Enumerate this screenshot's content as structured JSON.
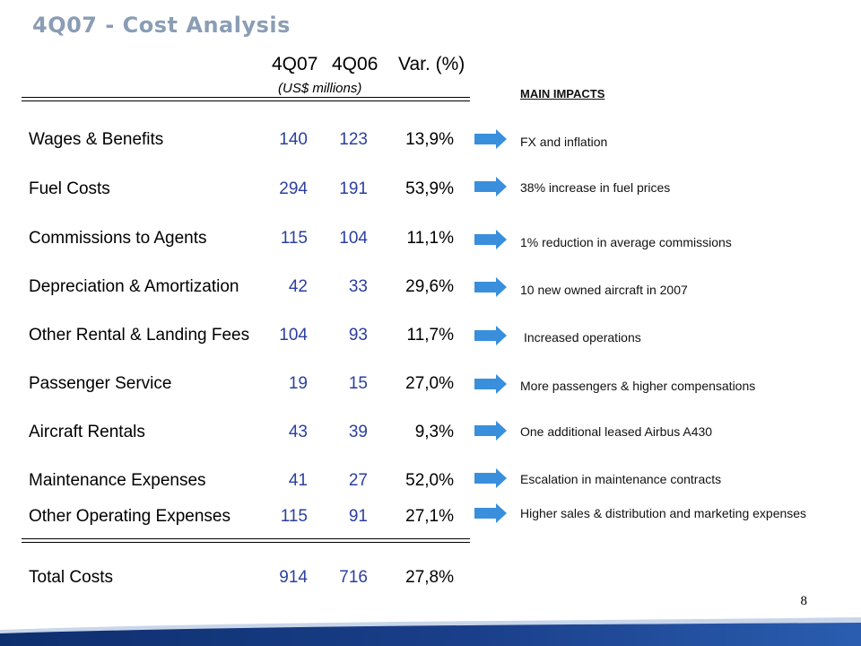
{
  "title": "4Q07 - Cost Analysis",
  "columns": {
    "c1": "4Q07",
    "c2": "4Q06",
    "c3": "Var. (%)",
    "unit": "(US$ millions)"
  },
  "impacts_header": "MAIN IMPACTS",
  "rows": [
    {
      "label": "Wages & Benefits",
      "v1": "140",
      "v2": "123",
      "var": "13,9%",
      "impact": "FX and inflation"
    },
    {
      "label": "Fuel Costs",
      "v1": "294",
      "v2": "191",
      "var": "53,9%",
      "impact": "38% increase in fuel prices"
    },
    {
      "label": "Commissions to Agents",
      "v1": "115",
      "v2": "104",
      "var": "11,1%",
      "impact": "1% reduction in average commissions"
    },
    {
      "label": "Depreciation & Amortization",
      "v1": "42",
      "v2": "33",
      "var": "29,6%",
      "impact": "10 new owned aircraft in 2007"
    },
    {
      "label": "Other Rental & Landing Fees",
      "v1": "104",
      "v2": "93",
      "var": "11,7%",
      "impact": "Increased operations"
    },
    {
      "label": "Passenger Service",
      "v1": "19",
      "v2": "15",
      "var": "27,0%",
      "impact": "More passengers & higher compensations"
    },
    {
      "label": "Aircraft Rentals",
      "v1": "43",
      "v2": "39",
      "var": "9,3%",
      "impact": "One additional leased Airbus A430"
    },
    {
      "label": "Maintenance Expenses",
      "v1": "41",
      "v2": "27",
      "var": "52,0%",
      "impact": "Escalation in maintenance contracts"
    },
    {
      "label": "Other Operating Expenses",
      "v1": "115",
      "v2": "91",
      "var": "27,1%",
      "impact": "Higher sales & distribution and marketing expenses"
    }
  ],
  "total": {
    "label": "Total Costs",
    "v1": "914",
    "v2": "716",
    "var": "27,8%"
  },
  "page_number": "8",
  "colors": {
    "title": "#8a9db5",
    "numbers": "#2b3fa0",
    "arrow": "#3a8fdc",
    "footer": "#1a3f8a"
  },
  "icons": {
    "arrow": "right-arrow-icon"
  }
}
